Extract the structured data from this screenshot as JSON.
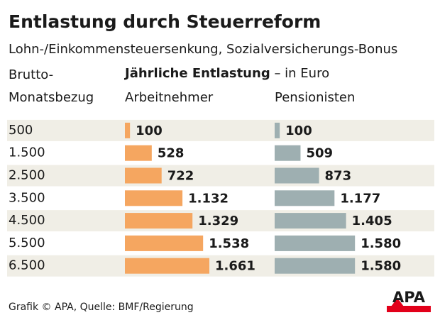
{
  "chart_data": {
    "type": "bar",
    "title": "Entlastung durch Steuerreform",
    "subtitle": "Lohn-/Einkommensteuersenkung, Sozialversicherungs-Bonus",
    "category_label": [
      "Brutto-",
      "Monatsbezug"
    ],
    "value_header": "Jährliche Entlastung",
    "value_unit": "– in Euro",
    "categories": [
      "500",
      "1.500",
      "2.500",
      "3.500",
      "4.500",
      "5.500",
      "6.500"
    ],
    "series": [
      {
        "name": "Arbeitnehmer",
        "color": "#f5a660",
        "values": [
          100,
          528,
          722,
          1132,
          1329,
          1538,
          1661
        ],
        "value_labels": [
          "100",
          "528",
          "722",
          "1.132",
          "1.329",
          "1.538",
          "1.661"
        ]
      },
      {
        "name": "Pensionisten",
        "color": "#9eafb1",
        "values": [
          100,
          509,
          873,
          1177,
          1405,
          1580,
          1580
        ],
        "value_labels": [
          "100",
          "509",
          "873",
          "1.177",
          "1.405",
          "1.580",
          "1.580"
        ]
      }
    ],
    "row_shading": "#f0eee6"
  },
  "footer": {
    "source": "Grafik © APA, Quelle: BMF/Regierung",
    "logo": "APA"
  }
}
